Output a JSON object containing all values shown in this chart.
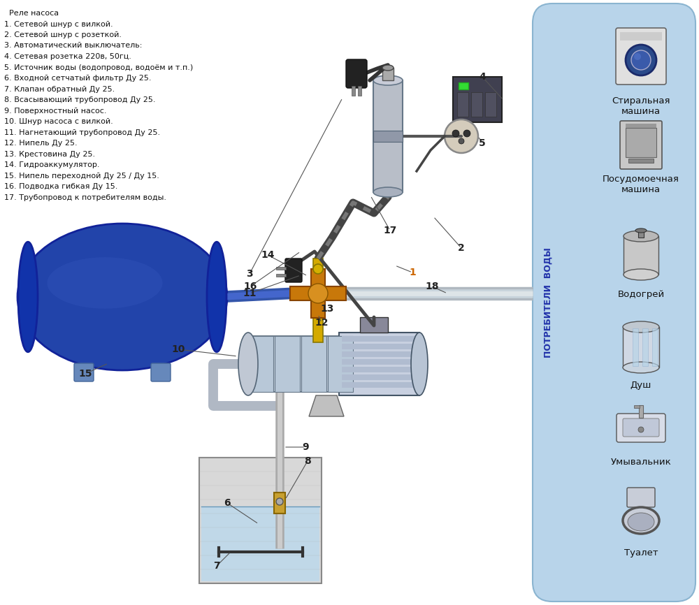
{
  "bg_color": "#ffffff",
  "right_panel_color": "#b8d4ea",
  "legend_items": [
    "  Реле насоса",
    "1. Сетевой шнур с вилкой.",
    "2. Сетевой шнур с розеткой.",
    "3. Автоматический выключатель:",
    "4. Сетевая розетка 220в, 50гц.",
    "5. Источник воды (водопровод, водоём и т.п.)",
    "6. Входной сетчатый фильтр Ду 25.",
    "7. Клапан обратный Ду 25.",
    "8. Всасывающий трубопровод Ду 25.",
    "9. Поверхностный насос.",
    "10. Шнур насоса с вилкой.",
    "11. Нагнетающий трубопровод Ду 25.",
    "12. Нипель Ду 25.",
    "13. Крестовина Ду 25.",
    "14. Гидроаккумулятор.",
    "15. Нипель переходной Ду 25 / Ду 15.",
    "16. Подводка гибкая Ду 15.",
    "17. Трубопровод к потребителям воды."
  ],
  "consumers": [
    "Стиральная\nмашина",
    "Посудомоечная\nмашина",
    "Водогрей",
    "Душ",
    "Умывальник",
    "Туалет"
  ],
  "panel_label": "ПОТРЕБИТЕЛИ  ВОДЫ"
}
